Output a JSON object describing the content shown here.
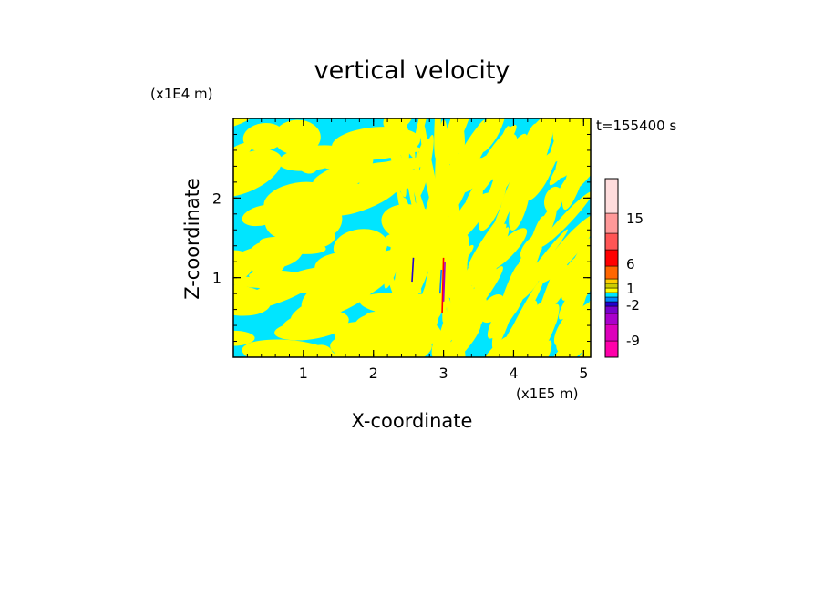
{
  "chart_data": {
    "type": "heatmap",
    "title": "vertical velocity",
    "time_label": "t=155400 s",
    "xlabel": "X-coordinate",
    "ylabel": "Z-coordinate",
    "x_scale": "(x1E5 m)",
    "y_scale": "(x1E4 m)",
    "xlim": [
      0,
      5.1
    ],
    "ylim": [
      0,
      3.0
    ],
    "x_ticks": [
      1,
      2,
      3,
      4,
      5
    ],
    "y_ticks": [
      1,
      2
    ],
    "colorbar": {
      "colors": [
        "#ff00aa",
        "#dd00bb",
        "#aa00cc",
        "#7700cc",
        "#2200cc",
        "#0088ff",
        "#00e5ff",
        "#ffff00",
        "#cccc00",
        "#ffcc00",
        "#ff6600",
        "#ff0000",
        "#ff5555",
        "#ff9999",
        "#ffdddd"
      ],
      "tick_labels": [
        "-9",
        "-2",
        "1",
        "6",
        "15"
      ]
    },
    "dominant_fields": {
      "positive": "#ffff00",
      "negative": "#00e5ff"
    }
  }
}
